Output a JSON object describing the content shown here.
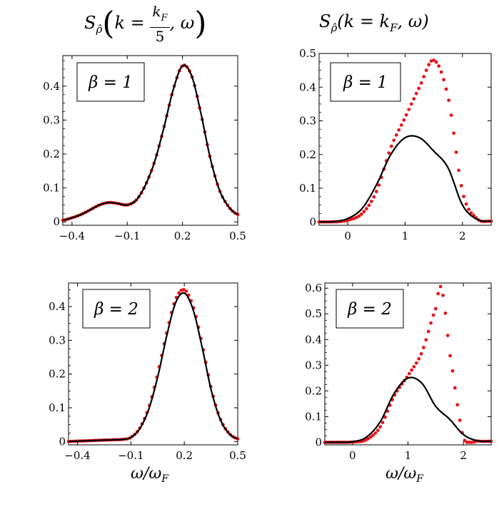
{
  "headers": {
    "left": {
      "symbol": "S",
      "symbol_sub": "ρ̂",
      "open": "(",
      "k_eq": "k =",
      "frac_num": "k",
      "frac_num_sub": "F",
      "frac_den": "5",
      "omega_close": ", ω",
      "close": ")"
    },
    "right": {
      "symbol": "S",
      "symbol_sub": "ρ̂",
      "body_a": "(k = k",
      "body_sub": "F",
      "body_b": ", ω)"
    }
  },
  "xaxis_label": {
    "main": "ω/ω",
    "sub": "F"
  },
  "colors": {
    "series_dots": "#e8141a",
    "series_line": "#000000",
    "frame": "#000000"
  },
  "chart_data": [
    {
      "id": "k-kF5-beta1",
      "type": "line",
      "legend_box": "β = 1",
      "xlim": [
        -0.45,
        0.5
      ],
      "ylim": [
        -0.01,
        0.49
      ],
      "xticks": [
        -0.4,
        -0.1,
        0.2,
        0.5
      ],
      "xtick_labels": [
        "−0.4",
        "−0.1",
        "0.2",
        "0.5"
      ],
      "yticks": [
        0,
        0.1,
        0.2,
        0.3,
        0.4
      ],
      "ytick_labels": [
        "0",
        "0.1",
        "0.2",
        "0.3",
        "0.4"
      ],
      "grid": false,
      "series": [
        {
          "style": "dots",
          "x": [
            -0.45,
            -0.4,
            -0.35,
            -0.3,
            -0.25,
            -0.2,
            -0.15,
            -0.1,
            -0.05,
            0,
            0.05,
            0.1,
            0.15,
            0.2,
            0.25,
            0.3,
            0.35,
            0.4,
            0.45,
            0.5
          ],
          "y": [
            0.005,
            0.012,
            0.022,
            0.036,
            0.05,
            0.057,
            0.054,
            0.05,
            0.065,
            0.11,
            0.18,
            0.28,
            0.39,
            0.46,
            0.43,
            0.32,
            0.19,
            0.095,
            0.045,
            0.022
          ]
        },
        {
          "style": "line",
          "x": [
            -0.45,
            -0.4,
            -0.35,
            -0.3,
            -0.25,
            -0.2,
            -0.15,
            -0.1,
            -0.05,
            0,
            0.05,
            0.1,
            0.15,
            0.2,
            0.25,
            0.3,
            0.35,
            0.4,
            0.45,
            0.5
          ],
          "y": [
            0.005,
            0.012,
            0.022,
            0.036,
            0.05,
            0.057,
            0.054,
            0.05,
            0.065,
            0.11,
            0.18,
            0.28,
            0.39,
            0.46,
            0.43,
            0.32,
            0.19,
            0.095,
            0.045,
            0.022
          ]
        }
      ]
    },
    {
      "id": "k-kF-beta1",
      "type": "line",
      "legend_box": "β = 1",
      "xlim": [
        -0.5,
        2.5
      ],
      "ylim": [
        -0.01,
        0.5
      ],
      "xticks": [
        0,
        1,
        2
      ],
      "xtick_labels": [
        "0",
        "1",
        "2"
      ],
      "yticks": [
        0,
        0.1,
        0.2,
        0.3,
        0.4,
        0.5
      ],
      "ytick_labels": [
        "0",
        "0.1",
        "0.2",
        "0.3",
        "0.4",
        "0.5"
      ],
      "grid": false,
      "series": [
        {
          "style": "dots",
          "x": [
            -0.5,
            -0.25,
            0,
            0.25,
            0.5,
            0.75,
            1,
            1.25,
            1.5,
            1.75,
            2,
            2.25,
            2.5
          ],
          "y": [
            0,
            0,
            0.005,
            0.025,
            0.09,
            0.22,
            0.31,
            0.4,
            0.48,
            0.37,
            0.09,
            0.01,
            0.002
          ]
        },
        {
          "style": "line",
          "x": [
            -0.5,
            -0.25,
            0,
            0.25,
            0.5,
            0.75,
            1,
            1.25,
            1.5,
            1.75,
            2,
            2.25,
            2.5
          ],
          "y": [
            0,
            0.001,
            0.01,
            0.04,
            0.11,
            0.2,
            0.25,
            0.25,
            0.21,
            0.16,
            0.05,
            0.008,
            0.002
          ]
        }
      ]
    },
    {
      "id": "k-kF5-beta2",
      "type": "line",
      "legend_box": "β = 2",
      "xlim": [
        -0.45,
        0.5
      ],
      "ylim": [
        -0.01,
        0.47
      ],
      "xticks": [
        -0.4,
        -0.1,
        0.2,
        0.5
      ],
      "xtick_labels": [
        "−0.4",
        "−0.1",
        "0.2",
        "0.5"
      ],
      "yticks": [
        0,
        0.1,
        0.2,
        0.3,
        0.4
      ],
      "ytick_labels": [
        "0",
        "0.1",
        "0.2",
        "0.3",
        "0.4"
      ],
      "grid": false,
      "series": [
        {
          "style": "dots",
          "x": [
            -0.45,
            -0.4,
            -0.35,
            -0.3,
            -0.25,
            -0.2,
            -0.15,
            -0.1,
            -0.05,
            0,
            0.05,
            0.1,
            0.15,
            0.2,
            0.25,
            0.3,
            0.35,
            0.4,
            0.45,
            0.5
          ],
          "y": [
            0,
            0.001,
            0.002,
            0.003,
            0.004,
            0.005,
            0.006,
            0.012,
            0.04,
            0.1,
            0.2,
            0.32,
            0.42,
            0.45,
            0.4,
            0.29,
            0.16,
            0.07,
            0.025,
            0.008
          ]
        },
        {
          "style": "line",
          "x": [
            -0.45,
            -0.4,
            -0.35,
            -0.3,
            -0.25,
            -0.2,
            -0.15,
            -0.1,
            -0.05,
            0,
            0.05,
            0.1,
            0.15,
            0.2,
            0.25,
            0.3,
            0.35,
            0.4,
            0.45,
            0.5
          ],
          "y": [
            0,
            0.001,
            0.002,
            0.003,
            0.004,
            0.005,
            0.006,
            0.012,
            0.038,
            0.095,
            0.19,
            0.31,
            0.41,
            0.44,
            0.39,
            0.28,
            0.155,
            0.068,
            0.024,
            0.008
          ]
        }
      ]
    },
    {
      "id": "k-kF-beta2",
      "type": "line",
      "legend_box": "β = 2",
      "xlim": [
        -0.5,
        2.5
      ],
      "ylim": [
        -0.01,
        0.62
      ],
      "xticks": [
        0,
        1,
        2
      ],
      "xtick_labels": [
        "0",
        "1",
        "2"
      ],
      "yticks": [
        0,
        0.1,
        0.2,
        0.3,
        0.4,
        0.5,
        0.6
      ],
      "ytick_labels": [
        "0",
        "0.1",
        "0.2",
        "0.3",
        "0.4",
        "0.5",
        "0.6"
      ],
      "grid": false,
      "series": [
        {
          "style": "dots",
          "x": [
            -0.5,
            -0.25,
            0,
            0.25,
            0.5,
            0.75,
            1,
            1.25,
            1.5,
            1.6,
            1.75,
            2,
            2.25,
            2.5
          ],
          "y": [
            0,
            0,
            0.001,
            0.01,
            0.06,
            0.18,
            0.26,
            0.35,
            0.52,
            0.6,
            0.35,
            0.02,
            0.005,
            0.004
          ]
        },
        {
          "style": "line",
          "x": [
            -0.5,
            -0.25,
            0,
            0.25,
            0.5,
            0.75,
            1,
            1.25,
            1.5,
            1.75,
            2,
            2.25,
            2.5
          ],
          "y": [
            0,
            0,
            0.002,
            0.02,
            0.08,
            0.19,
            0.25,
            0.23,
            0.14,
            0.09,
            0.03,
            0.006,
            0.004
          ]
        }
      ]
    }
  ]
}
